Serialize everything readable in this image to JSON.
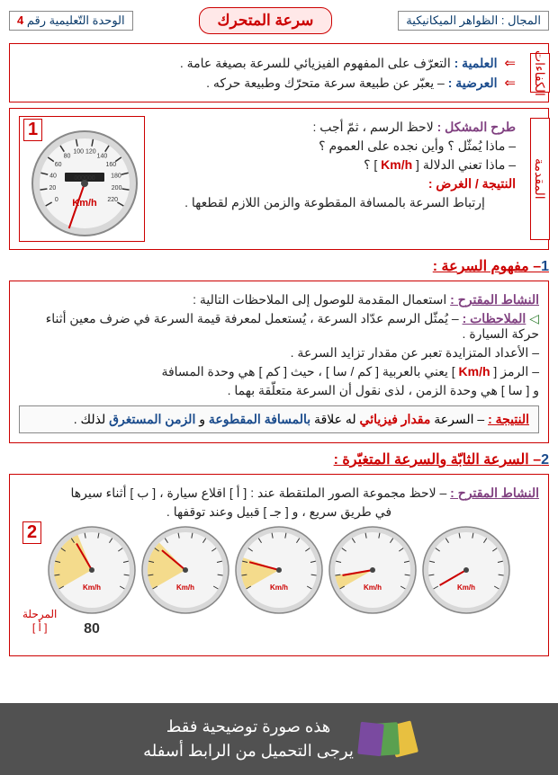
{
  "header": {
    "domain_label": "المجال : الظواهر الميكانيكية",
    "title": "سرعة المتحرك",
    "unit_label": "الوحدة التّعليمية رقم",
    "unit_num": "4"
  },
  "competencies": {
    "side": "الكفاءات",
    "l1_arrow": "⇐",
    "l1_kw": "العلمية :",
    "l1_txt": " التعرّف على المفهوم الفيزيائي للسرعة بصيغة عامة .",
    "l2_arrow": "⇐",
    "l2_kw": "العرضية :",
    "l2_txt": " – يعبّر عن طبيعة سرعة متحرّك وطبيعة حركه ."
  },
  "problem": {
    "side": "المقدمة",
    "p1_kw": "طرح المشكل :",
    "p1_txt": " لاحظ الرسم ، ثمّ أجب :",
    "q1": "– ماذا يُمثّل ؟ وأين نجده على العموم ؟",
    "q2_a": "– ماذا تعني الدلالة [ ",
    "q2_b": "Km/h",
    "q2_c": " ] ؟",
    "res_kw": "النتيجة / الغرض :",
    "res_txt": "إرتباط السرعة بالمسافة المقطوعة والزمن اللازم لقطعها .",
    "gauge_num": "1",
    "gauge": {
      "ticks": [
        0,
        20,
        40,
        60,
        80,
        100,
        120,
        140,
        160,
        180,
        200,
        220
      ],
      "kmh": "Km/h",
      "odometer": "000000",
      "needle_angle": -120
    }
  },
  "section1": {
    "heading_num": "1",
    "heading": "– مفهوم السرعة :",
    "act_kw": "النشاط المقترح :",
    "act_txt": " استعمال المقدمة للوصول  إلى الملاحظات التالية :",
    "obs_kw": "الملاحظات :",
    "obs1": " – يُمثّل الرسم عدّاد السرعة ، يُستعمل لمعرفة قيمة السرعة في ضرف معين أثناء حركة السيارة .",
    "obs2": "– الأعداد المتزايدة تعبر عن مقدار تزايد السرعة .",
    "obs3_a": "– الرمز [ ",
    "obs3_b": "Km/h",
    "obs3_c": " ] يعني بالعربية [ كم / سا ] ، حيث [ كم ] هي وحدة المسافة",
    "obs4": "و [ سا ] هي وحدة الزمن ، لذى نقول أن السرعة متعلّقة بهما .",
    "result_kw": "النتيجة :",
    "result_a": " – السرعة ",
    "result_b": "مقدار فيزيائي",
    "result_c": " له علاقة ",
    "result_d": "بالمسافة المقطوعة",
    "result_e": " و",
    "result_f": "الزمن المستغرق",
    "result_g": " لذلك ."
  },
  "section2": {
    "heading_num": "2",
    "heading": "– السرعة الثابّة والسرعة المتغيّرة :",
    "act_kw": "النشاط المقترح :",
    "act_txt_a": " – لاحظ مجموعة الصور الملتقطة عند : [ أ ] اقلاع سيارة ، [ ب ] أثناء سيرها",
    "act_txt_b": "في طريق سريع ، و [ جـ ] قبيل وعند توقفها .",
    "row_num": "2",
    "phase_a": "المرحلة",
    "phase_b": "[ أ ]",
    "gauges": [
      {
        "needle_angle": -120,
        "sweep": 0,
        "label": ""
      },
      {
        "needle_angle": -100,
        "sweep": 20,
        "label": ""
      },
      {
        "needle_angle": -75,
        "sweep": 45,
        "label": ""
      },
      {
        "needle_angle": -50,
        "sweep": 70,
        "label": ""
      },
      {
        "needle_angle": -30,
        "sweep": 90,
        "label": "80"
      }
    ]
  },
  "footer": {
    "line1": "هذه صورة توضيحية فقط",
    "line2": "يرجى التحميل من الرابط أسفله"
  },
  "style": {
    "red": "#c00",
    "blue": "#1a4b8c"
  }
}
